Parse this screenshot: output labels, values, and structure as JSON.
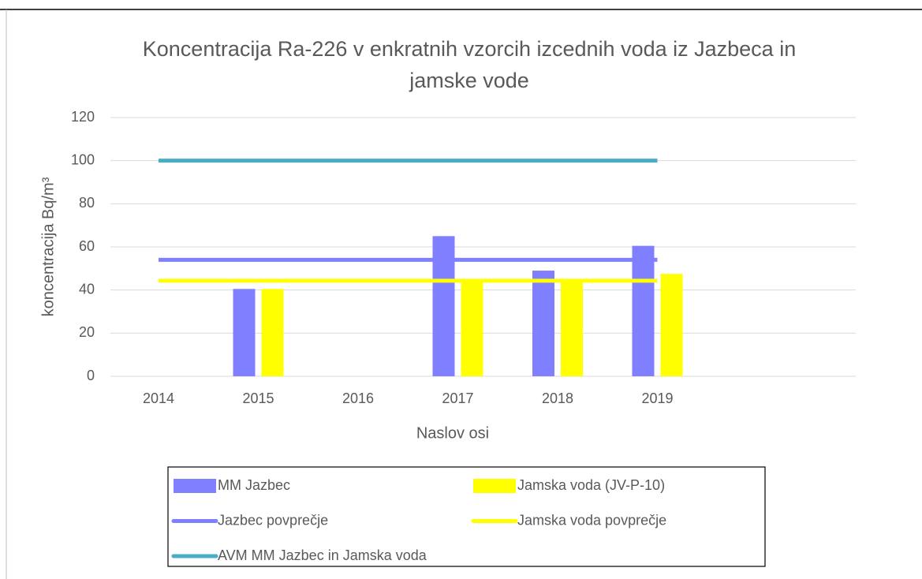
{
  "chart_data": {
    "type": "bar",
    "title": "Koncentracija Ra-226 v enkratnih vzorcih izcednih voda iz Jazbeca in jamske vode",
    "x_label": "Naslov osi",
    "y_label": "koncentracija Bq/m³",
    "categories": [
      "2014",
      "2015",
      "2016",
      "2017",
      "2018",
      "2019",
      null,
      null
    ],
    "series": [
      {
        "name": "MM Jazbec",
        "type": "bar",
        "color": "#7f7fff",
        "values": [
          null,
          40.5,
          null,
          65,
          49,
          60.5,
          null,
          null
        ]
      },
      {
        "name": "Jamska voda (JV-P-10)",
        "type": "bar",
        "color": "#ffff00",
        "values": [
          null,
          40.5,
          null,
          45,
          45,
          47.5,
          null,
          null
        ]
      },
      {
        "name": "Jazbec povprečje",
        "type": "line",
        "color": "#7f7fff",
        "values": [
          54,
          54,
          54,
          54,
          54,
          54,
          null,
          null
        ]
      },
      {
        "name": "Jamska voda povprečje",
        "type": "line",
        "color": "#ffff00",
        "values": [
          44.3,
          44.3,
          44.3,
          44.3,
          44.3,
          44.3,
          null,
          null
        ]
      },
      {
        "name": "AVM MM Jazbec in Jamska voda",
        "type": "line",
        "color": "#4bacc6",
        "values": [
          100,
          100,
          100,
          100,
          100,
          100,
          null,
          null
        ]
      }
    ],
    "ylim": [
      0,
      120
    ],
    "yticks": [
      0,
      20,
      40,
      60,
      80,
      100,
      120
    ],
    "grid": true,
    "legend": "bottom"
  }
}
